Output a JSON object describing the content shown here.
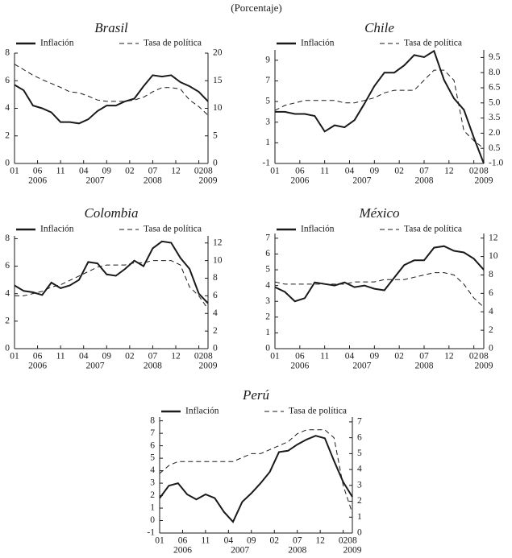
{
  "note": "(Porcentaje)",
  "chart_data": [
    {
      "type": "line",
      "title": "Brasil",
      "x": [
        0,
        2,
        4,
        6,
        8,
        10,
        12,
        14,
        16,
        18,
        20,
        22,
        24,
        26,
        28,
        30,
        32,
        34,
        36,
        38,
        40,
        42
      ],
      "xlim": [
        0,
        42
      ],
      "xticks": [
        {
          "value": 0,
          "label": "01"
        },
        {
          "value": 5,
          "label": "06"
        },
        {
          "value": 10,
          "label": "11"
        },
        {
          "value": 15,
          "label": "04"
        },
        {
          "value": 20,
          "label": "09"
        },
        {
          "value": 25,
          "label": "02"
        },
        {
          "value": 30,
          "label": "07"
        },
        {
          "value": 35,
          "label": "12"
        },
        {
          "value": 40,
          "label": "02"
        },
        {
          "value": 42,
          "label": "08"
        }
      ],
      "year_ticks": [
        {
          "value": 5,
          "label": "2006"
        },
        {
          "value": 17.5,
          "label": "2007"
        },
        {
          "value": 30,
          "label": "2008"
        },
        {
          "value": 42,
          "label": "2009"
        }
      ],
      "ylim": [
        0,
        8
      ],
      "yticks": [
        0,
        2,
        4,
        6,
        8
      ],
      "y2lim": [
        0,
        20
      ],
      "y2ticks": [
        0,
        5,
        10,
        15,
        20
      ],
      "series": [
        {
          "name": "Inflación",
          "color": "#1a1a1a",
          "values": [
            5.7,
            5.3,
            4.2,
            4.0,
            3.7,
            3.0,
            3.0,
            2.9,
            3.2,
            3.8,
            4.2,
            4.2,
            4.5,
            4.7,
            5.6,
            6.4,
            6.3,
            6.4,
            5.9,
            5.6,
            5.2,
            4.5
          ]
        },
        {
          "name": "Tasa de política",
          "color": "#1a1a1a",
          "axis": "y2",
          "dash": true,
          "values": [
            18.0,
            17.0,
            16.0,
            15.2,
            14.5,
            13.8,
            13.0,
            12.8,
            12.2,
            11.5,
            11.25,
            11.25,
            11.25,
            11.5,
            12.0,
            13.0,
            13.75,
            13.75,
            13.5,
            11.5,
            10.3,
            8.75
          ]
        }
      ]
    },
    {
      "type": "line",
      "title": "Chile",
      "x": [
        0,
        2,
        4,
        6,
        8,
        10,
        12,
        14,
        16,
        18,
        20,
        22,
        24,
        26,
        28,
        30,
        32,
        34,
        36,
        38,
        40,
        42
      ],
      "xlim": [
        0,
        42
      ],
      "xticks": [
        {
          "value": 0,
          "label": "01"
        },
        {
          "value": 5,
          "label": "06"
        },
        {
          "value": 10,
          "label": "11"
        },
        {
          "value": 15,
          "label": "04"
        },
        {
          "value": 20,
          "label": "09"
        },
        {
          "value": 25,
          "label": "02"
        },
        {
          "value": 30,
          "label": "07"
        },
        {
          "value": 35,
          "label": "12"
        },
        {
          "value": 40,
          "label": "02"
        },
        {
          "value": 42,
          "label": "08"
        }
      ],
      "year_ticks": [
        {
          "value": 5,
          "label": "2006"
        },
        {
          "value": 17.5,
          "label": "2007"
        },
        {
          "value": 30,
          "label": "2008"
        },
        {
          "value": 42,
          "label": "2009"
        }
      ],
      "ylim": [
        -1,
        10
      ],
      "yticks": [
        -1,
        1,
        3,
        5,
        7,
        9
      ],
      "y2lim": [
        -1,
        10.25
      ],
      "y2ticks": [
        {
          "value": -1,
          "label": "-1.0"
        },
        0.5,
        {
          "value": 2,
          "label": "2.0"
        },
        3.5,
        {
          "value": 5,
          "label": "5.0"
        },
        6.5,
        {
          "value": 8,
          "label": "8.0"
        },
        9.5
      ],
      "series": [
        {
          "name": "Inflación",
          "color": "#1a1a1a",
          "values": [
            4.0,
            4.0,
            3.8,
            3.8,
            3.6,
            2.1,
            2.7,
            2.5,
            3.2,
            4.8,
            6.5,
            7.8,
            7.8,
            8.5,
            9.5,
            9.3,
            9.9,
            7.1,
            5.3,
            4.2,
            1.5,
            -1.0
          ]
        },
        {
          "name": "Tasa de política",
          "color": "#1a1a1a",
          "axis": "y2",
          "dash": true,
          "values": [
            4.25,
            4.75,
            5.0,
            5.25,
            5.25,
            5.25,
            5.25,
            5.0,
            5.0,
            5.25,
            5.5,
            6.0,
            6.25,
            6.25,
            6.25,
            7.25,
            8.25,
            8.25,
            7.25,
            2.25,
            1.25,
            0.5
          ]
        }
      ]
    },
    {
      "type": "line",
      "title": "Colombia",
      "x": [
        0,
        2,
        4,
        6,
        8,
        10,
        12,
        14,
        16,
        18,
        20,
        22,
        24,
        26,
        28,
        30,
        32,
        34,
        36,
        38,
        40,
        42
      ],
      "xlim": [
        0,
        42
      ],
      "xticks": [
        {
          "value": 0,
          "label": "01"
        },
        {
          "value": 5,
          "label": "06"
        },
        {
          "value": 10,
          "label": "11"
        },
        {
          "value": 15,
          "label": "04"
        },
        {
          "value": 20,
          "label": "09"
        },
        {
          "value": 25,
          "label": "02"
        },
        {
          "value": 30,
          "label": "07"
        },
        {
          "value": 35,
          "label": "12"
        },
        {
          "value": 40,
          "label": "02"
        },
        {
          "value": 42,
          "label": "08"
        }
      ],
      "year_ticks": [
        {
          "value": 5,
          "label": "2006"
        },
        {
          "value": 17.5,
          "label": "2007"
        },
        {
          "value": 30,
          "label": "2008"
        },
        {
          "value": 42,
          "label": "2009"
        }
      ],
      "ylim": [
        0,
        8.2
      ],
      "yticks": [
        0,
        2,
        4,
        6,
        8
      ],
      "y2lim": [
        0,
        12.8
      ],
      "y2ticks": [
        0,
        2,
        4,
        6,
        8,
        10,
        12
      ],
      "series": [
        {
          "name": "Inflación",
          "color": "#1a1a1a",
          "values": [
            4.6,
            4.2,
            4.1,
            3.9,
            4.8,
            4.4,
            4.6,
            5.0,
            6.3,
            6.2,
            5.4,
            5.3,
            5.8,
            6.4,
            6.0,
            7.3,
            7.8,
            7.7,
            6.6,
            5.8,
            4.0,
            3.3
          ]
        },
        {
          "name": "Tasa de política",
          "color": "#1a1a1a",
          "axis": "y2",
          "dash": true,
          "values": [
            6.0,
            6.0,
            6.25,
            6.5,
            7.0,
            7.25,
            7.75,
            8.25,
            8.75,
            9.25,
            9.5,
            9.5,
            9.5,
            9.75,
            9.75,
            10.0,
            10.0,
            10.0,
            9.5,
            7.0,
            6.0,
            4.5
          ]
        }
      ]
    },
    {
      "type": "line",
      "title": "México",
      "x": [
        0,
        2,
        4,
        6,
        8,
        10,
        12,
        14,
        16,
        18,
        20,
        22,
        24,
        26,
        28,
        30,
        32,
        34,
        36,
        38,
        40,
        42
      ],
      "xlim": [
        0,
        42
      ],
      "xticks": [
        {
          "value": 0,
          "label": "01"
        },
        {
          "value": 5,
          "label": "06"
        },
        {
          "value": 10,
          "label": "11"
        },
        {
          "value": 15,
          "label": "04"
        },
        {
          "value": 20,
          "label": "09"
        },
        {
          "value": 25,
          "label": "02"
        },
        {
          "value": 30,
          "label": "07"
        },
        {
          "value": 35,
          "label": "12"
        },
        {
          "value": 40,
          "label": "02"
        },
        {
          "value": 42,
          "label": "08"
        }
      ],
      "year_ticks": [
        {
          "value": 5,
          "label": "2006"
        },
        {
          "value": 17.5,
          "label": "2007"
        },
        {
          "value": 30,
          "label": "2008"
        },
        {
          "value": 42,
          "label": "2009"
        }
      ],
      "ylim": [
        0,
        7.3
      ],
      "yticks": [
        0,
        1,
        2,
        3,
        4,
        5,
        6,
        7
      ],
      "y2lim": [
        0,
        12.5
      ],
      "y2ticks": [
        0,
        2,
        4,
        6,
        8,
        10,
        12
      ],
      "series": [
        {
          "name": "Inflación",
          "color": "#1a1a1a",
          "values": [
            3.9,
            3.6,
            3.0,
            3.2,
            4.2,
            4.1,
            4.0,
            4.2,
            3.9,
            4.0,
            3.8,
            3.7,
            4.5,
            5.3,
            5.6,
            5.6,
            6.4,
            6.5,
            6.2,
            6.1,
            5.7,
            5.0
          ]
        },
        {
          "name": "Tasa de política",
          "color": "#1a1a1a",
          "axis": "y2",
          "dash": true,
          "values": [
            7.25,
            7.0,
            7.0,
            7.0,
            7.0,
            7.0,
            7.0,
            7.0,
            7.25,
            7.25,
            7.25,
            7.5,
            7.5,
            7.5,
            7.75,
            8.0,
            8.25,
            8.25,
            8.0,
            7.0,
            5.5,
            4.5
          ]
        }
      ]
    },
    {
      "type": "line",
      "title": "Perú",
      "x": [
        0,
        2,
        4,
        6,
        8,
        10,
        12,
        14,
        16,
        18,
        20,
        22,
        24,
        26,
        28,
        30,
        32,
        34,
        36,
        38,
        40,
        42
      ],
      "xlim": [
        0,
        42
      ],
      "xticks": [
        {
          "value": 0,
          "label": "01"
        },
        {
          "value": 5,
          "label": "06"
        },
        {
          "value": 10,
          "label": "11"
        },
        {
          "value": 15,
          "label": "04"
        },
        {
          "value": 20,
          "label": "09"
        },
        {
          "value": 25,
          "label": "02"
        },
        {
          "value": 30,
          "label": "07"
        },
        {
          "value": 35,
          "label": "12"
        },
        {
          "value": 40,
          "label": "02"
        },
        {
          "value": 42,
          "label": "08"
        }
      ],
      "year_ticks": [
        {
          "value": 5,
          "label": "2006"
        },
        {
          "value": 17.5,
          "label": "2007"
        },
        {
          "value": 30,
          "label": "2008"
        },
        {
          "value": 42,
          "label": "2009"
        }
      ],
      "ylim": [
        -1,
        8.3
      ],
      "yticks": [
        -1,
        0,
        1,
        2,
        3,
        4,
        5,
        6,
        7,
        8
      ],
      "y2lim": [
        0,
        7.3
      ],
      "y2ticks": [
        0,
        1,
        2,
        3,
        4,
        5,
        6,
        7
      ],
      "series": [
        {
          "name": "Inflación",
          "color": "#1a1a1a",
          "values": [
            1.8,
            2.8,
            3.0,
            2.1,
            1.7,
            2.1,
            1.8,
            0.7,
            -0.1,
            1.5,
            2.2,
            3.0,
            3.9,
            5.5,
            5.6,
            6.1,
            6.5,
            6.8,
            6.6,
            4.8,
            3.1,
            1.9
          ]
        },
        {
          "name": "Tasa de política",
          "color": "#1a1a1a",
          "axis": "y2",
          "dash": true,
          "values": [
            3.75,
            4.25,
            4.5,
            4.5,
            4.5,
            4.5,
            4.5,
            4.5,
            4.5,
            4.75,
            5.0,
            5.0,
            5.25,
            5.5,
            5.75,
            6.25,
            6.5,
            6.5,
            6.5,
            6.0,
            3.0,
            1.25
          ]
        }
      ]
    }
  ]
}
